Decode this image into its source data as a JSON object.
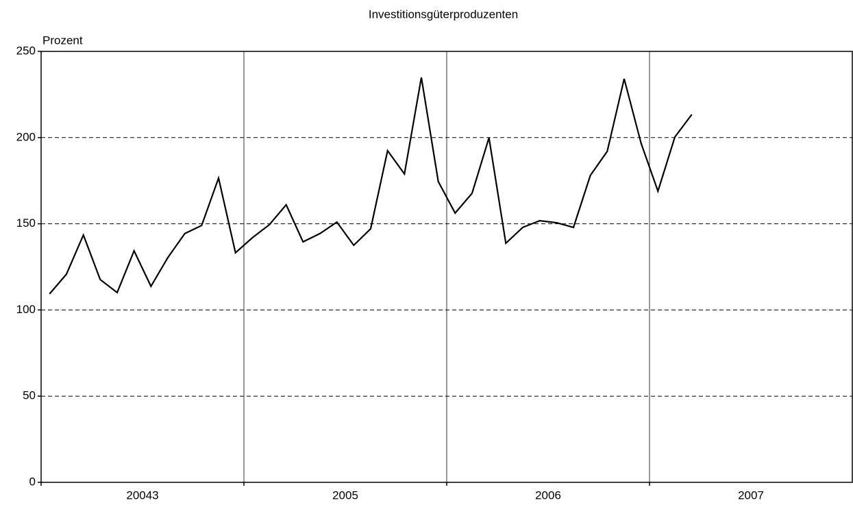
{
  "chart_data": {
    "type": "line",
    "title": "Investitionsgüterproduzenten",
    "y_label": "Prozent",
    "categories": [
      "20043",
      "2005",
      "2006",
      "2007"
    ],
    "values": [
      [
        109.3,
        120.8,
        143.5,
        117.6,
        110.1,
        134.3,
        113.7,
        130.4,
        144.3,
        149.0,
        176.5,
        133.2
      ],
      [
        141.9,
        149.4,
        161.0,
        139.5,
        144.3,
        151.0,
        137.5,
        147.1,
        192.4,
        178.9,
        234.9,
        174.5
      ],
      [
        156.2,
        167.7,
        199.9,
        138.7,
        147.9,
        151.8,
        150.6,
        147.9,
        178.1,
        192.0,
        234.1,
        196.7
      ],
      [
        168.9,
        200.3,
        213.4
      ]
    ],
    "color": "#000000",
    "ylim": [
      0,
      250
    ],
    "yticks": [
      0,
      50,
      100,
      150,
      200,
      250
    ],
    "grid": true
  }
}
